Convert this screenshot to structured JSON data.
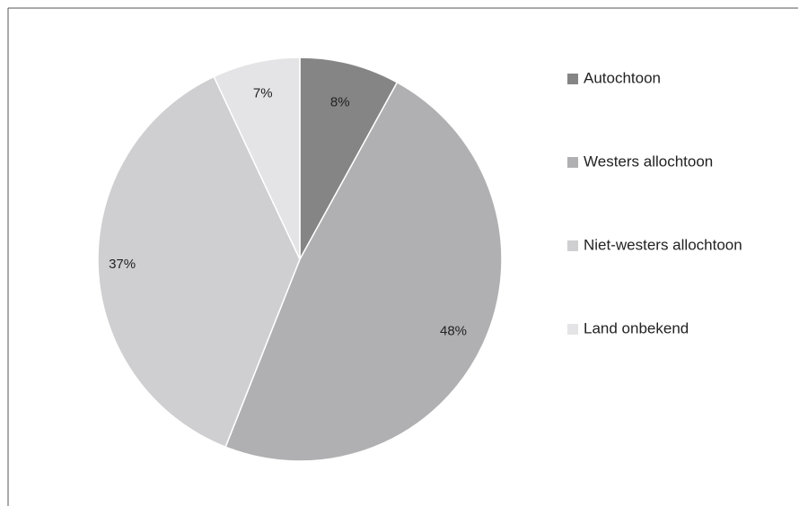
{
  "chart_data": {
    "type": "pie",
    "categories": [
      "Autochtoon",
      "Westers allochtoon",
      "Niet-westers allochtoon",
      "Land onbekend"
    ],
    "values": [
      8,
      48,
      37,
      7
    ],
    "value_labels": [
      "8%",
      "48%",
      "37%",
      "7%"
    ],
    "colors": [
      "#858585",
      "#b0b0b2",
      "#cfcfd1",
      "#e4e4e6"
    ],
    "start_angle_deg": 0,
    "direction": "clockwise",
    "legend_position": "right"
  }
}
